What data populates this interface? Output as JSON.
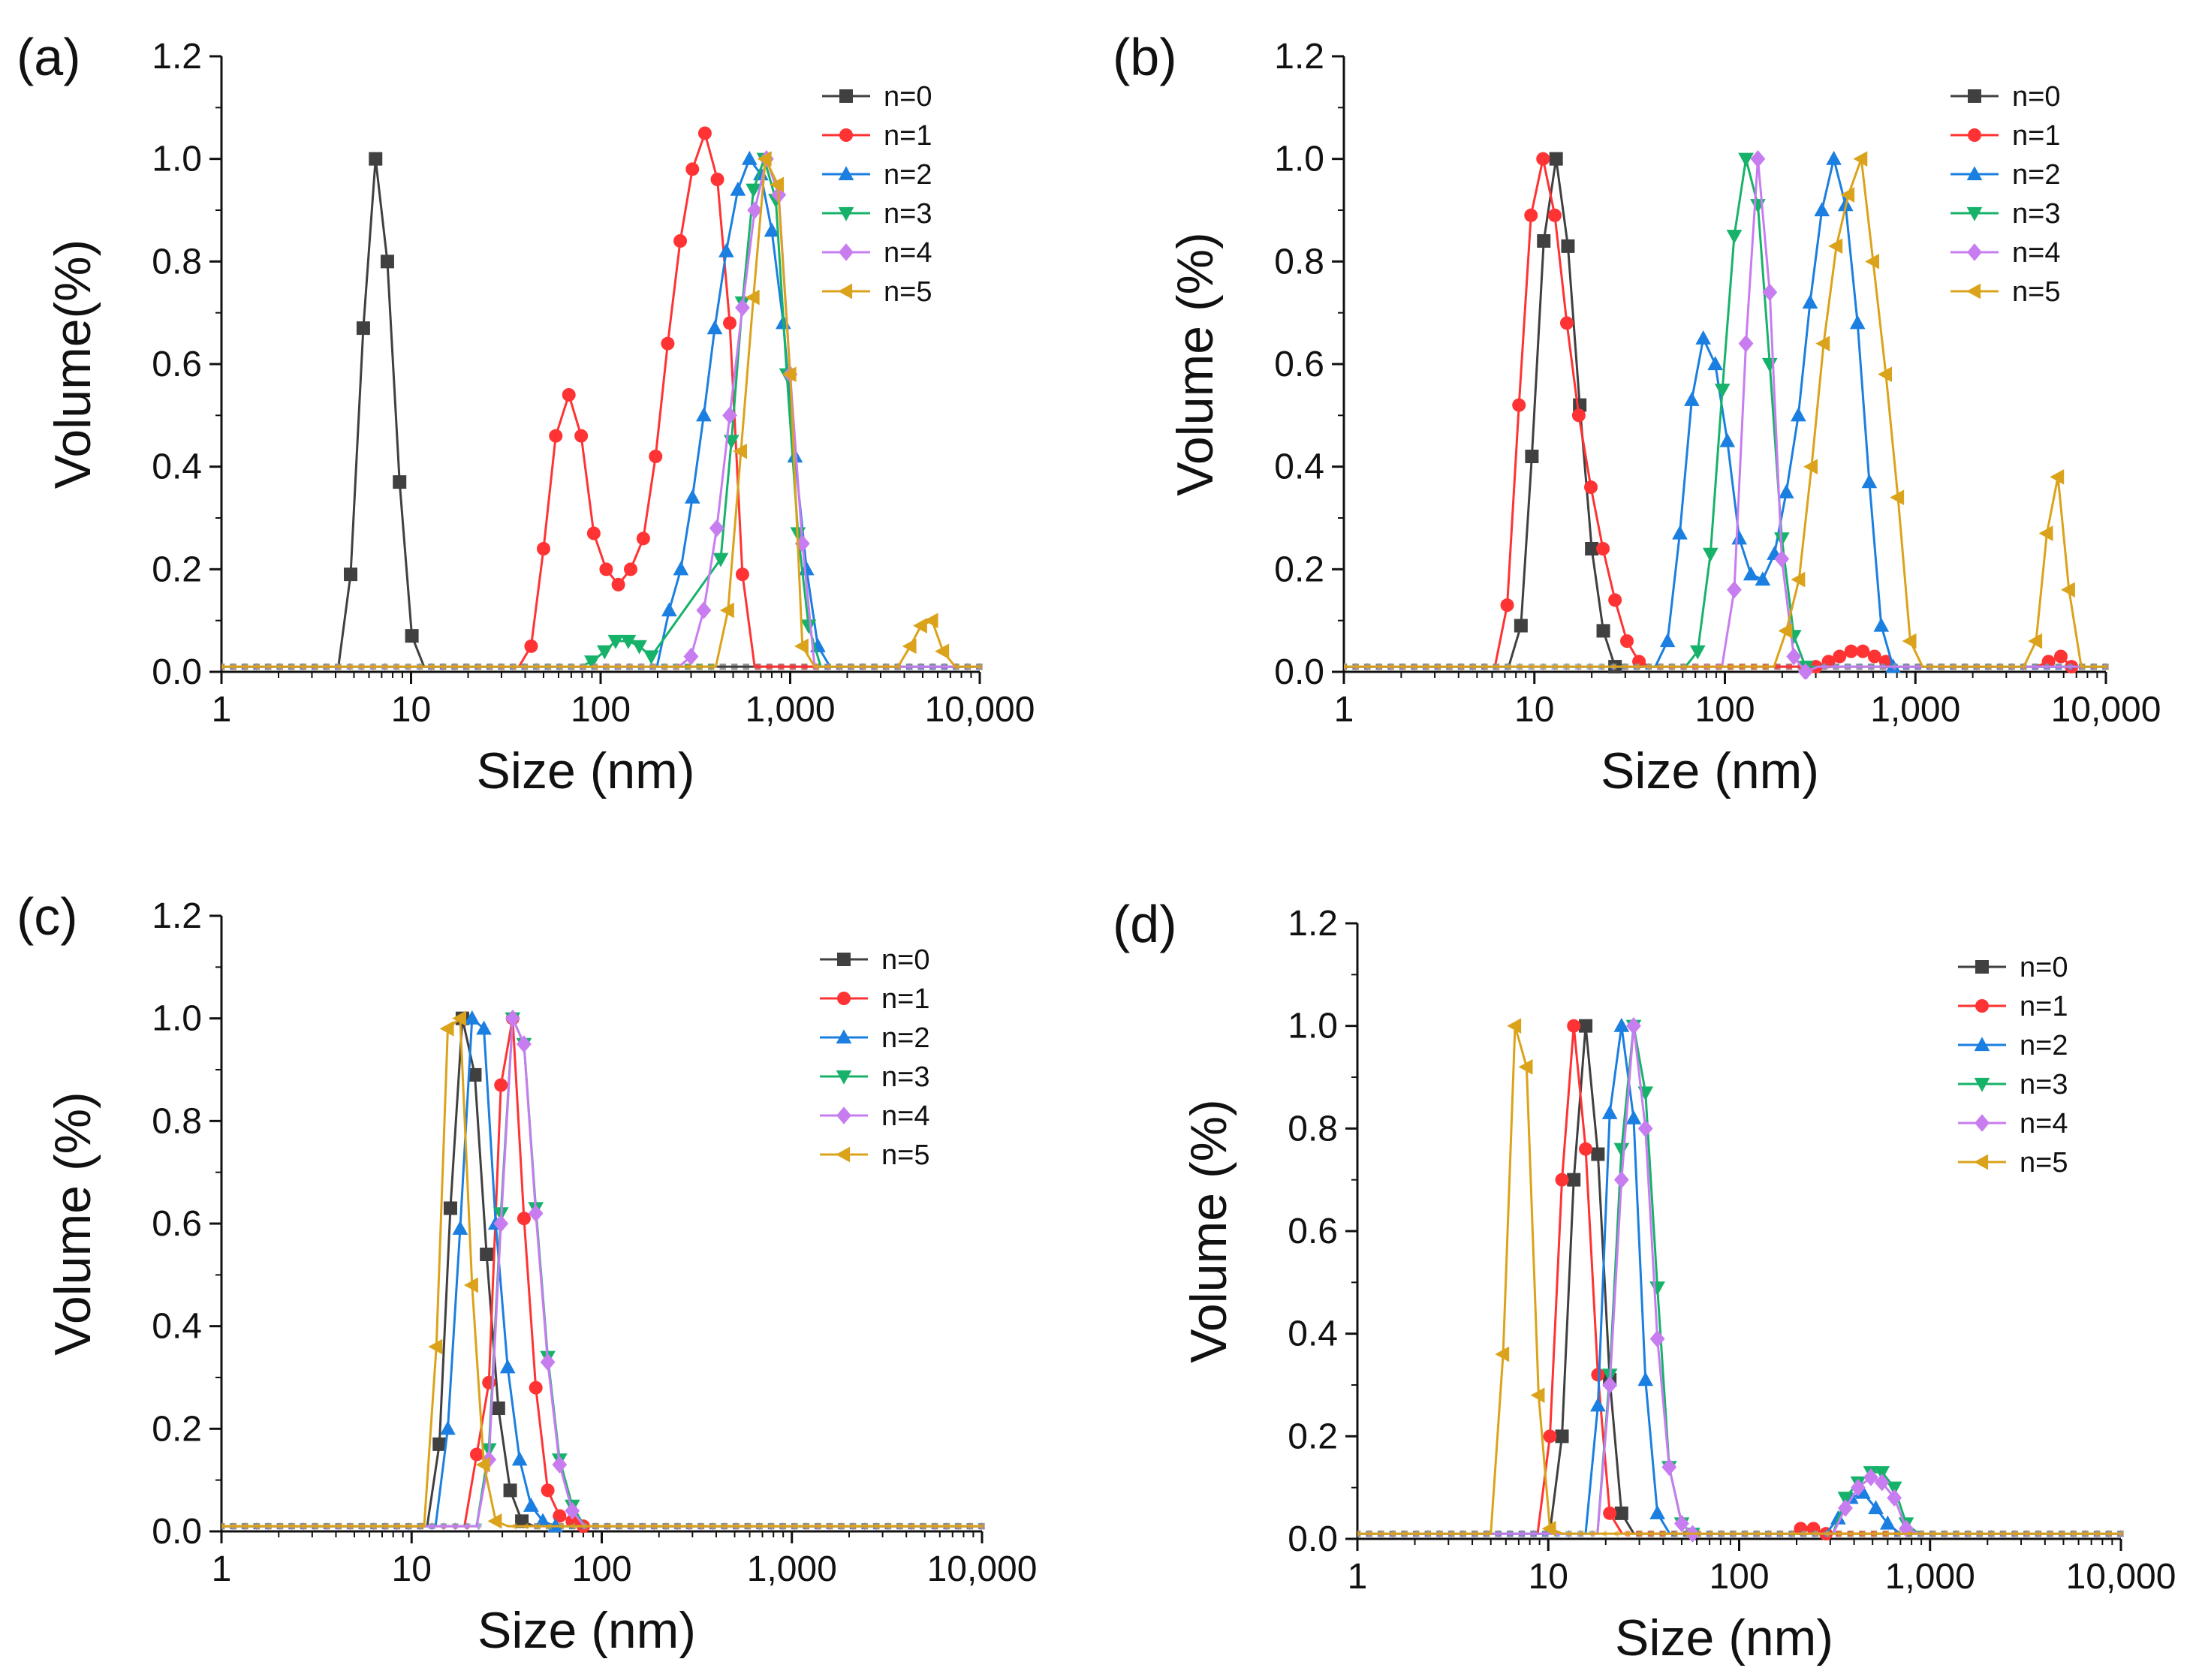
{
  "colors": {
    "n0": "#404040",
    "n1": "#ff3333",
    "n2": "#1a7fe0",
    "n3": "#17b26a",
    "n4": "#c77df0",
    "n5": "#dba31b",
    "axis": "#111111"
  },
  "chart_data": [
    {
      "panel": "(a)",
      "type": "line",
      "xscale": "log",
      "xlabel": "Size (nm)",
      "ylabel": "Volume(%)",
      "xlim": [
        1,
        10000
      ],
      "ylim": [
        0,
        1.2
      ],
      "xticks": [
        "1",
        "10",
        "100",
        "1,000",
        "10,000"
      ],
      "yticks": [
        "0.0",
        "0.2",
        "0.4",
        "0.6",
        "0.8",
        "1.0",
        "1.2"
      ],
      "legend_position": "top-right",
      "series": [
        {
          "name": "n=0",
          "marker": "square",
          "color_key": "n0",
          "x": [
            4.8,
            5.6,
            6.5,
            7.5,
            8.7,
            10.1
          ],
          "y": [
            0.19,
            0.67,
            1.0,
            0.8,
            0.37,
            0.07
          ]
        },
        {
          "name": "n=1",
          "marker": "circle",
          "color_key": "n1",
          "x": [
            43,
            50,
            58,
            68,
            79,
            92,
            107,
            124,
            144,
            168,
            195,
            226,
            263,
            305,
            355,
            413,
            480,
            560
          ],
          "y": [
            0.05,
            0.24,
            0.46,
            0.54,
            0.46,
            0.27,
            0.2,
            0.17,
            0.2,
            0.26,
            0.42,
            0.64,
            0.84,
            0.98,
            1.05,
            0.96,
            0.68,
            0.19
          ]
        },
        {
          "name": "n=2",
          "marker": "triangle-up",
          "color_key": "n2",
          "x": [
            230,
            265,
            305,
            350,
            400,
            460,
            530,
            610,
            700,
            800,
            920,
            1060,
            1220,
            1400
          ],
          "y": [
            0.12,
            0.2,
            0.34,
            0.5,
            0.67,
            0.82,
            0.94,
            1.0,
            0.97,
            0.86,
            0.68,
            0.42,
            0.2,
            0.05
          ]
        },
        {
          "name": "n=3",
          "marker": "triangle-down",
          "color_key": "n3",
          "x": [
            90,
            105,
            120,
            140,
            160,
            185,
            430,
            490,
            560,
            640,
            730,
            840,
            960,
            1100,
            1250
          ],
          "y": [
            0.02,
            0.04,
            0.06,
            0.06,
            0.05,
            0.03,
            0.22,
            0.45,
            0.72,
            0.94,
            1.0,
            0.92,
            0.58,
            0.27,
            0.09
          ]
        },
        {
          "name": "n=4",
          "marker": "diamond",
          "color_key": "n4",
          "x": [
            300,
            350,
            410,
            480,
            560,
            650,
            750,
            870,
            1000,
            1160
          ],
          "y": [
            0.03,
            0.12,
            0.28,
            0.5,
            0.71,
            0.9,
            1.0,
            0.93,
            0.58,
            0.25
          ]
        },
        {
          "name": "n=5",
          "marker": "triangle-left",
          "color_key": "n5",
          "x": [
            470,
            550,
            640,
            740,
            860,
            1000,
            1160,
            4300,
            4900,
            5600,
            6400
          ],
          "y": [
            0.12,
            0.43,
            0.73,
            1.0,
            0.95,
            0.58,
            0.05,
            0.05,
            0.09,
            0.1,
            0.04
          ]
        }
      ]
    },
    {
      "panel": "(b)",
      "type": "line",
      "xscale": "log",
      "xlabel": "Size (nm)",
      "ylabel": "Volume (%)",
      "xlim": [
        1,
        10000
      ],
      "ylim": [
        0,
        1.2
      ],
      "xticks": [
        "1",
        "10",
        "100",
        "1,000",
        "10,000"
      ],
      "yticks": [
        "0.0",
        "0.2",
        "0.4",
        "0.6",
        "0.8",
        "1.0",
        "1.2"
      ],
      "legend_position": "top-right",
      "series": [
        {
          "name": "n=0",
          "marker": "square",
          "color_key": "n0",
          "x": [
            8.5,
            9.7,
            11.2,
            13.0,
            15.0,
            17.3,
            20.0,
            23.0,
            26.5
          ],
          "y": [
            0.09,
            0.42,
            0.84,
            1.0,
            0.83,
            0.52,
            0.24,
            0.08,
            0.01
          ]
        },
        {
          "name": "n=1",
          "marker": "circle",
          "color_key": "n1",
          "x": [
            7.2,
            8.3,
            9.6,
            11.1,
            12.8,
            14.8,
            17.1,
            19.8,
            22.9,
            26.5,
            30.6,
            35.4,
            300,
            350,
            400,
            460,
            530,
            610,
            700,
            5000,
            5800,
            6600
          ],
          "y": [
            0.13,
            0.52,
            0.89,
            1.0,
            0.89,
            0.68,
            0.5,
            0.36,
            0.24,
            0.14,
            0.06,
            0.02,
            0.01,
            0.02,
            0.03,
            0.04,
            0.04,
            0.03,
            0.02,
            0.02,
            0.03,
            0.01
          ]
        },
        {
          "name": "n=2",
          "marker": "triangle-up",
          "color_key": "n2",
          "x": [
            50,
            58,
            67,
            77,
            89,
            103,
            119,
            137,
            158,
            182,
            210,
            243,
            280,
            323,
            373,
            430,
            497,
            573,
            662,
            764
          ],
          "y": [
            0.06,
            0.27,
            0.53,
            0.65,
            0.6,
            0.45,
            0.26,
            0.19,
            0.18,
            0.23,
            0.35,
            0.5,
            0.72,
            0.9,
            1.0,
            0.91,
            0.68,
            0.37,
            0.09,
            0.01
          ]
        },
        {
          "name": "n=3",
          "marker": "triangle-down",
          "color_key": "n3",
          "x": [
            72,
            84,
            97,
            112,
            129,
            149,
            172,
            199,
            230,
            265
          ],
          "y": [
            0.04,
            0.23,
            0.55,
            0.85,
            1.0,
            0.91,
            0.6,
            0.26,
            0.07,
            0.01
          ]
        },
        {
          "name": "n=4",
          "marker": "diamond",
          "color_key": "n4",
          "x": [
            112,
            129,
            149,
            172,
            199,
            230,
            265
          ],
          "y": [
            0.16,
            0.64,
            1.0,
            0.74,
            0.22,
            0.03,
            0.0
          ]
        },
        {
          "name": "n=5",
          "marker": "triangle-left",
          "color_key": "n5",
          "x": [
            210,
            245,
            285,
            330,
            385,
            445,
            520,
            600,
            700,
            810,
            940,
            4300,
            4900,
            5600,
            6400
          ],
          "y": [
            0.08,
            0.18,
            0.4,
            0.64,
            0.83,
            0.93,
            1.0,
            0.8,
            0.58,
            0.34,
            0.06,
            0.06,
            0.27,
            0.38,
            0.16
          ]
        }
      ]
    },
    {
      "panel": "(c)",
      "type": "line",
      "xscale": "log",
      "xlabel": "Size (nm)",
      "ylabel": "Volume (%)",
      "xlim": [
        1,
        10000
      ],
      "ylim": [
        0,
        1.2
      ],
      "xticks": [
        "1",
        "10",
        "100",
        "1,000",
        "10,000"
      ],
      "yticks": [
        "0.0",
        "0.2",
        "0.4",
        "0.6",
        "0.8",
        "1.0",
        "1.2"
      ],
      "legend_position": "top-right",
      "series": [
        {
          "name": "n=0",
          "marker": "square",
          "color_key": "n0",
          "x": [
            14,
            16,
            18.5,
            21.5,
            24.8,
            28.6,
            33,
            38
          ],
          "y": [
            0.17,
            0.63,
            1.0,
            0.89,
            0.54,
            0.24,
            0.08,
            0.02
          ]
        },
        {
          "name": "n=1",
          "marker": "circle",
          "color_key": "n1",
          "x": [
            22,
            25.5,
            29.5,
            34,
            39,
            45,
            52,
            60,
            70,
            80
          ],
          "y": [
            0.15,
            0.29,
            0.87,
            1.0,
            0.61,
            0.28,
            0.08,
            0.03,
            0.02,
            0.01
          ]
        },
        {
          "name": "n=2",
          "marker": "triangle-up",
          "color_key": "n2",
          "x": [
            15.5,
            18,
            20.8,
            24,
            27.7,
            32,
            37,
            42.5,
            49,
            57
          ],
          "y": [
            0.2,
            0.59,
            1.0,
            0.98,
            0.6,
            0.32,
            0.14,
            0.05,
            0.02,
            0.01
          ]
        },
        {
          "name": "n=3",
          "marker": "triangle-down",
          "color_key": "n3",
          "x": [
            25.5,
            29.5,
            34,
            39,
            45,
            52,
            60,
            70
          ],
          "y": [
            0.16,
            0.62,
            1.0,
            0.95,
            0.63,
            0.34,
            0.14,
            0.05
          ]
        },
        {
          "name": "n=4",
          "marker": "diamond",
          "color_key": "n4",
          "x": [
            25.5,
            29.5,
            34,
            39,
            45,
            52,
            60,
            70
          ],
          "y": [
            0.14,
            0.6,
            1.0,
            0.95,
            0.62,
            0.33,
            0.13,
            0.04
          ]
        },
        {
          "name": "n=5",
          "marker": "triangle-left",
          "color_key": "n5",
          "x": [
            13.5,
            15.5,
            18,
            20.8,
            24,
            27.7
          ],
          "y": [
            0.36,
            0.98,
            1.0,
            0.48,
            0.13,
            0.02
          ]
        }
      ]
    },
    {
      "panel": "(d)",
      "type": "line",
      "xscale": "log",
      "xlabel": "Size (nm)",
      "ylabel": "Volume (%)",
      "xlim": [
        1,
        10000
      ],
      "ylim": [
        0,
        1.2
      ],
      "xticks": [
        "1",
        "10",
        "100",
        "1,000",
        "10,000"
      ],
      "yticks": [
        "0.0",
        "0.2",
        "0.4",
        "0.6",
        "0.8",
        "1.0",
        "1.2"
      ],
      "legend_position": "top-right",
      "series": [
        {
          "name": "n=0",
          "marker": "square",
          "color_key": "n0",
          "x": [
            11.8,
            13.6,
            15.7,
            18.2,
            21,
            24.2
          ],
          "y": [
            0.2,
            0.7,
            1.0,
            0.75,
            0.31,
            0.05
          ]
        },
        {
          "name": "n=1",
          "marker": "circle",
          "color_key": "n1",
          "x": [
            10.2,
            11.8,
            13.6,
            15.7,
            18.2,
            21,
            210,
            245,
            285
          ],
          "y": [
            0.2,
            0.7,
            1.0,
            0.76,
            0.32,
            0.05,
            0.02,
            0.02,
            0.01
          ]
        },
        {
          "name": "n=2",
          "marker": "triangle-up",
          "color_key": "n2",
          "x": [
            18.2,
            21,
            24.2,
            28,
            32.3,
            37.3,
            330,
            385,
            445,
            520,
            600
          ],
          "y": [
            0.26,
            0.83,
            1.0,
            0.82,
            0.31,
            0.05,
            0.04,
            0.08,
            0.09,
            0.06,
            0.03
          ]
        },
        {
          "name": "n=3",
          "marker": "triangle-down",
          "color_key": "n3",
          "x": [
            21,
            24.2,
            28,
            32.3,
            37.3,
            43,
            50,
            57,
            360,
            420,
            490,
            560,
            650,
            750
          ],
          "y": [
            0.32,
            0.76,
            1.0,
            0.87,
            0.49,
            0.14,
            0.03,
            0.01,
            0.08,
            0.11,
            0.13,
            0.13,
            0.1,
            0.03
          ]
        },
        {
          "name": "n=4",
          "marker": "diamond",
          "color_key": "n4",
          "x": [
            21,
            24.2,
            28,
            32.3,
            37.3,
            43,
            50,
            57,
            360,
            420,
            490,
            560,
            650,
            750
          ],
          "y": [
            0.3,
            0.7,
            1.0,
            0.8,
            0.39,
            0.14,
            0.03,
            0.01,
            0.06,
            0.1,
            0.12,
            0.11,
            0.08,
            0.02
          ]
        },
        {
          "name": "n=5",
          "marker": "triangle-left",
          "color_key": "n5",
          "x": [
            5.8,
            6.7,
            7.7,
            8.9,
            10.2
          ],
          "y": [
            0.36,
            1.0,
            0.92,
            0.28,
            0.02
          ]
        }
      ]
    }
  ]
}
